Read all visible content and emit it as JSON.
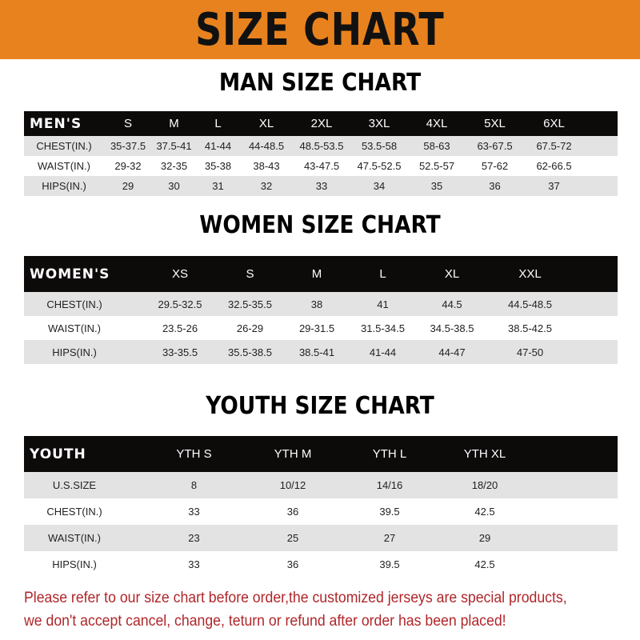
{
  "banner": {
    "title": "SIZE CHART",
    "color": "#E8821E"
  },
  "men": {
    "title": "MAN SIZE CHART",
    "header": [
      "MEN'S",
      "S",
      "M",
      "L",
      "XL",
      "2XL",
      "3XL",
      "4XL",
      "5XL",
      "6XL"
    ],
    "rows": [
      [
        "CHEST(IN.)",
        "35-37.5",
        "37.5-41",
        "41-44",
        "44-48.5",
        "48.5-53.5",
        "53.5-58",
        "58-63",
        "63-67.5",
        "67.5-72"
      ],
      [
        "WAIST(IN.)",
        "29-32",
        "32-35",
        "35-38",
        "38-43",
        "43-47.5",
        "47.5-52.5",
        "52.5-57",
        "57-62",
        "62-66.5"
      ],
      [
        "HIPS(IN.)",
        "29",
        "30",
        "31",
        "32",
        "33",
        "34",
        "35",
        "36",
        "37"
      ]
    ]
  },
  "women": {
    "title": "WOMEN SIZE CHART",
    "header": [
      "WOMEN'S",
      "XS",
      "S",
      "M",
      "L",
      "XL",
      "XXL"
    ],
    "rows": [
      [
        "CHEST(IN.)",
        "29.5-32.5",
        "32.5-35.5",
        "38",
        "41",
        "44.5",
        "44.5-48.5"
      ],
      [
        "WAIST(IN.)",
        "23.5-26",
        "26-29",
        "29-31.5",
        "31.5-34.5",
        "34.5-38.5",
        "38.5-42.5"
      ],
      [
        "HIPS(IN.)",
        "33-35.5",
        "35.5-38.5",
        "38.5-41",
        "41-44",
        "44-47",
        "47-50"
      ]
    ]
  },
  "youth": {
    "title": "YOUTH SIZE CHART",
    "header": [
      "YOUTH",
      "YTH S",
      "YTH M",
      "YTH L",
      "YTH XL"
    ],
    "rows": [
      [
        "U.S.SIZE",
        "8",
        "10/12",
        "14/16",
        "18/20"
      ],
      [
        "CHEST(IN.)",
        "33",
        "36",
        "39.5",
        "42.5"
      ],
      [
        "WAIST(IN.)",
        "23",
        "25",
        "27",
        "29"
      ],
      [
        "HIPS(IN.)",
        "33",
        "36",
        "39.5",
        "42.5"
      ]
    ]
  },
  "footer": {
    "line1": "Please refer to our size chart before order,the customized jerseys are special products,",
    "line2": "we don't accept cancel, change, teturn or refund after order has been placed!",
    "color": "#B0262A"
  }
}
